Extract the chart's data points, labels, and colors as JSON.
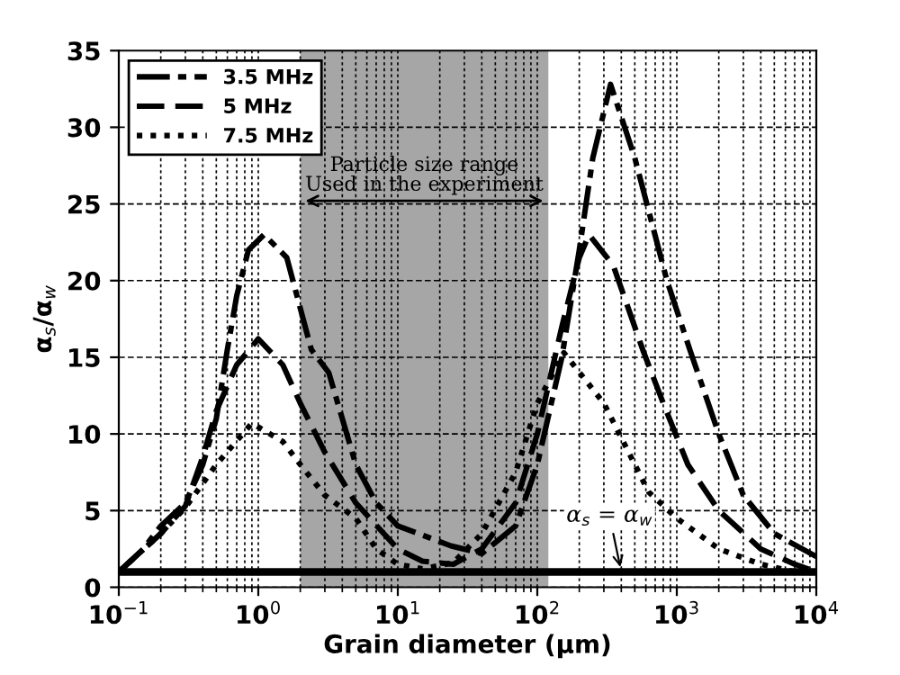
{
  "chart_data": {
    "type": "line",
    "xlabel": "Grain diameter (μm)",
    "ylabel": "α$_{s}$/α$_{w}$",
    "log": "x",
    "grid": true,
    "legend": "top left",
    "xlim": [
      0.1,
      10000
    ],
    "ylim": [
      0,
      35
    ],
    "xticks": [
      {
        "value": 0.1,
        "label": "10$^{−1}$"
      },
      {
        "value": 1,
        "label": "10$^{0}$"
      },
      {
        "value": 10,
        "label": "10$^{1}$"
      },
      {
        "value": 100,
        "label": "10$^{2}$"
      },
      {
        "value": 1000,
        "label": "10$^{3}$"
      },
      {
        "value": 10000,
        "label": "10$^{4}$"
      }
    ],
    "yticks": [
      0,
      5,
      10,
      15,
      20,
      25,
      30,
      35
    ],
    "series": [
      {
        "name": "3.5 MHz",
        "color": "#000000",
        "line_style": "dashdot",
        "x": [
          0.1,
          0.15,
          0.2,
          0.3,
          0.4,
          0.5,
          0.6,
          0.7,
          0.85,
          1.1,
          1.6,
          2.4,
          3.2,
          5,
          7,
          10,
          24,
          40,
          70,
          100,
          150,
          200,
          250,
          335,
          500,
          850,
          1250,
          2000,
          3000,
          5000,
          10000
        ],
        "values": [
          1.0,
          2.5,
          4,
          5.5,
          8,
          11,
          15.5,
          19,
          22,
          23,
          21.5,
          15.5,
          14,
          8,
          5.5,
          4,
          2.7,
          2.2,
          4,
          8,
          15,
          22,
          28,
          32.8,
          28,
          20,
          15.4,
          10,
          6,
          3.5,
          2
        ]
      },
      {
        "name": "5 MHz",
        "color": "#000000",
        "line_style": "dashed",
        "x": [
          0.1,
          0.2,
          0.3,
          0.4,
          0.5,
          0.7,
          1,
          1.5,
          2,
          3,
          5,
          10,
          15,
          25,
          40,
          70,
          100,
          150,
          200,
          235,
          350,
          575,
          800,
          1200,
          2000,
          4000,
          7000,
          10000
        ],
        "values": [
          1.0,
          3.5,
          5.3,
          8.5,
          11.5,
          14.5,
          16.2,
          14.5,
          12,
          8.8,
          5.5,
          2.5,
          1.7,
          1.5,
          2.5,
          5.5,
          10,
          17,
          21.5,
          23,
          21,
          15.4,
          12,
          8,
          5,
          2.5,
          1.5,
          1
        ]
      },
      {
        "name": "7.5 MHz",
        "color": "#000000",
        "line_style": "dotted",
        "x": [
          0.1,
          0.2,
          0.3,
          0.5,
          0.9,
          1.5,
          2,
          3,
          5,
          7,
          10,
          15,
          25,
          40,
          70,
          100,
          155,
          300,
          630,
          1000,
          2000,
          4000,
          7000
        ],
        "values": [
          1.0,
          3.5,
          5.2,
          8,
          10.7,
          9.5,
          8,
          6,
          4.5,
          2.5,
          1.5,
          1.2,
          1.6,
          3.5,
          7.5,
          12,
          15.3,
          12,
          6.2,
          4.5,
          2.5,
          1.5,
          1
        ]
      }
    ],
    "ref_lines": [
      {
        "axis": "y",
        "value": 1,
        "color": "#000000",
        "line_style": "solid"
      }
    ],
    "bands": [
      {
        "axis": "x",
        "from": 2,
        "to": 120,
        "label": "Particle size range\nUsed in the experiment",
        "color": "#a6a6a6"
      }
    ],
    "annotations": [
      {
        "text": "α$_{s}$ = α$_{w}$",
        "x": 400,
        "y": 1
      }
    ]
  }
}
